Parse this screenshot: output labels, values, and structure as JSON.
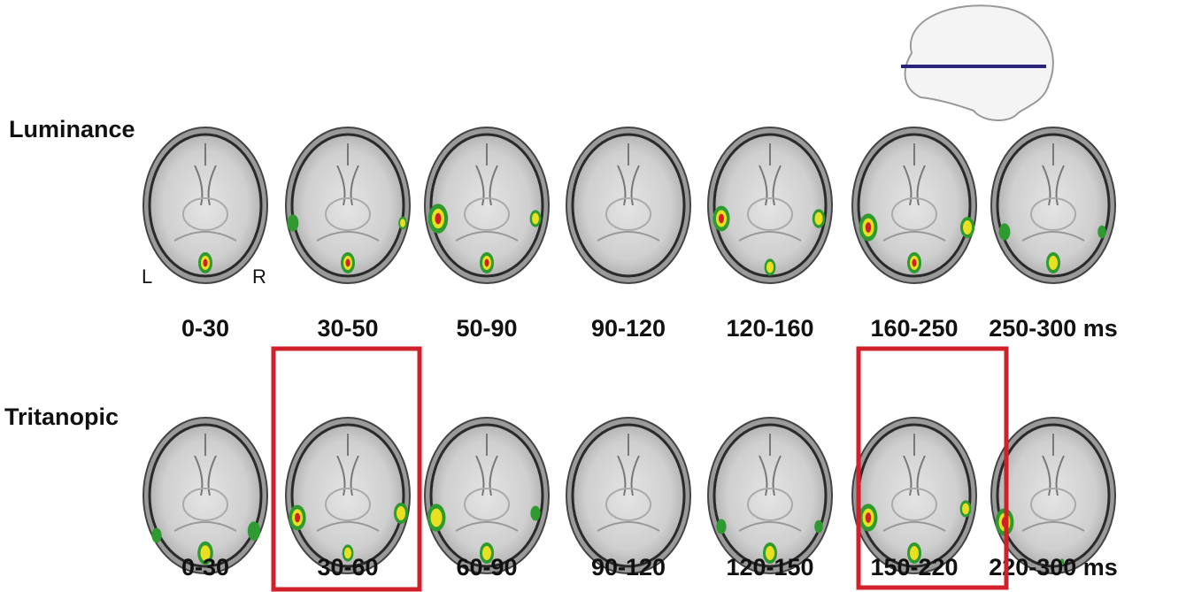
{
  "rows": [
    {
      "label": "Luminance",
      "windows": [
        "0-30",
        "30-50",
        "50-90",
        "90-120",
        "120-160",
        "160-250",
        "250-300 ms"
      ]
    },
    {
      "label": "Tritanopic",
      "windows": [
        "0-30",
        "30-60",
        "60-90",
        "90-120",
        "120-150",
        "150-220",
        "220-300 ms"
      ]
    }
  ],
  "orientation": {
    "left": "L",
    "right": "R"
  }
}
